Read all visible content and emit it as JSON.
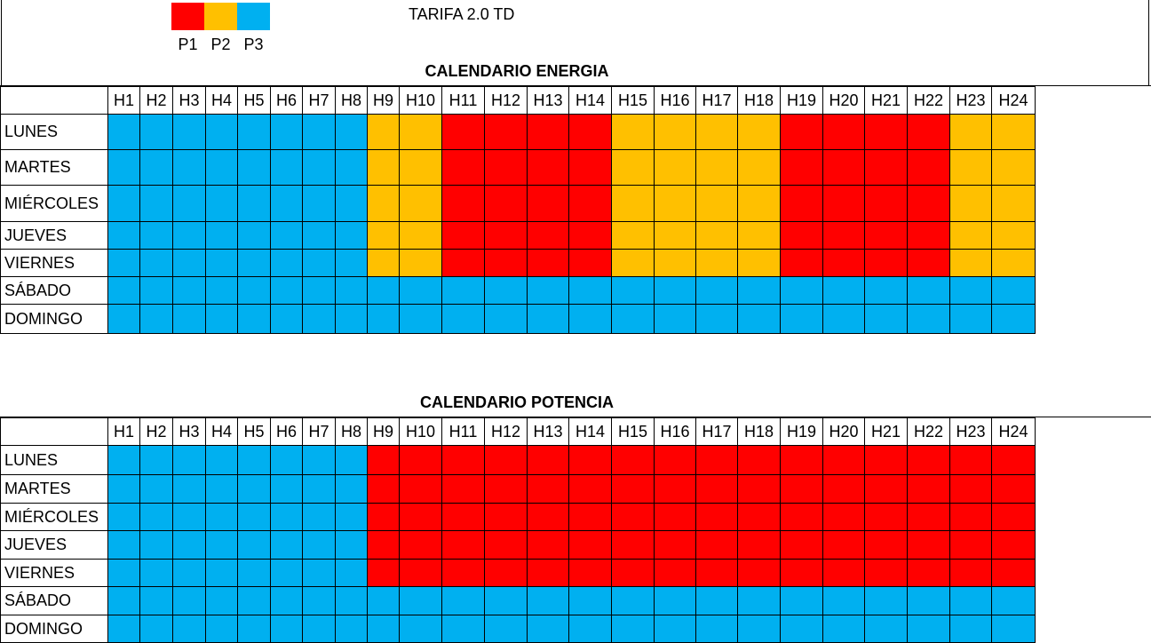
{
  "legend": [
    {
      "label": "P1",
      "color": "#ff0000"
    },
    {
      "label": "P2",
      "color": "#ffc000"
    },
    {
      "label": "P3",
      "color": "#00b0f0"
    }
  ],
  "header": {
    "title": "TARIFA 2.0 TD"
  },
  "calendars": [
    {
      "title": "CALENDARIO ENERGIA",
      "hours": [
        "H1",
        "H2",
        "H3",
        "H4",
        "H5",
        "H6",
        "H7",
        "H8",
        "H9",
        "H10",
        "H11",
        "H12",
        "H13",
        "H14",
        "H15",
        "H16",
        "H17",
        "H18",
        "H19",
        "H20",
        "H21",
        "H22",
        "H23",
        "H24"
      ],
      "rows": [
        {
          "day": "LUNES",
          "periods": [
            "P3",
            "P3",
            "P3",
            "P3",
            "P3",
            "P3",
            "P3",
            "P3",
            "P2",
            "P2",
            "P1",
            "P1",
            "P1",
            "P1",
            "P2",
            "P2",
            "P2",
            "P2",
            "P1",
            "P1",
            "P1",
            "P1",
            "P2",
            "P2"
          ]
        },
        {
          "day": "MARTES",
          "periods": [
            "P3",
            "P3",
            "P3",
            "P3",
            "P3",
            "P3",
            "P3",
            "P3",
            "P2",
            "P2",
            "P1",
            "P1",
            "P1",
            "P1",
            "P2",
            "P2",
            "P2",
            "P2",
            "P1",
            "P1",
            "P1",
            "P1",
            "P2",
            "P2"
          ]
        },
        {
          "day": "MIÉRCOLES",
          "periods": [
            "P3",
            "P3",
            "P3",
            "P3",
            "P3",
            "P3",
            "P3",
            "P3",
            "P2",
            "P2",
            "P1",
            "P1",
            "P1",
            "P1",
            "P2",
            "P2",
            "P2",
            "P2",
            "P1",
            "P1",
            "P1",
            "P1",
            "P2",
            "P2"
          ]
        },
        {
          "day": "JUEVES",
          "periods": [
            "P3",
            "P3",
            "P3",
            "P3",
            "P3",
            "P3",
            "P3",
            "P3",
            "P2",
            "P2",
            "P1",
            "P1",
            "P1",
            "P1",
            "P2",
            "P2",
            "P2",
            "P2",
            "P1",
            "P1",
            "P1",
            "P1",
            "P2",
            "P2"
          ]
        },
        {
          "day": "VIERNES",
          "periods": [
            "P3",
            "P3",
            "P3",
            "P3",
            "P3",
            "P3",
            "P3",
            "P3",
            "P2",
            "P2",
            "P1",
            "P1",
            "P1",
            "P1",
            "P2",
            "P2",
            "P2",
            "P2",
            "P1",
            "P1",
            "P1",
            "P1",
            "P2",
            "P2"
          ]
        },
        {
          "day": "SÁBADO",
          "periods": [
            "P3",
            "P3",
            "P3",
            "P3",
            "P3",
            "P3",
            "P3",
            "P3",
            "P3",
            "P3",
            "P3",
            "P3",
            "P3",
            "P3",
            "P3",
            "P3",
            "P3",
            "P3",
            "P3",
            "P3",
            "P3",
            "P3",
            "P3",
            "P3"
          ]
        },
        {
          "day": "DOMINGO",
          "periods": [
            "P3",
            "P3",
            "P3",
            "P3",
            "P3",
            "P3",
            "P3",
            "P3",
            "P3",
            "P3",
            "P3",
            "P3",
            "P3",
            "P3",
            "P3",
            "P3",
            "P3",
            "P3",
            "P3",
            "P3",
            "P3",
            "P3",
            "P3",
            "P3"
          ]
        }
      ]
    },
    {
      "title": "CALENDARIO POTENCIA",
      "hours": [
        "H1",
        "H2",
        "H3",
        "H4",
        "H5",
        "H6",
        "H7",
        "H8",
        "H9",
        "H10",
        "H11",
        "H12",
        "H13",
        "H14",
        "H15",
        "H16",
        "H17",
        "H18",
        "H19",
        "H20",
        "H21",
        "H22",
        "H23",
        "H24"
      ],
      "rows": [
        {
          "day": "LUNES",
          "periods": [
            "P3",
            "P3",
            "P3",
            "P3",
            "P3",
            "P3",
            "P3",
            "P3",
            "P1",
            "P1",
            "P1",
            "P1",
            "P1",
            "P1",
            "P1",
            "P1",
            "P1",
            "P1",
            "P1",
            "P1",
            "P1",
            "P1",
            "P1",
            "P1"
          ]
        },
        {
          "day": "MARTES",
          "periods": [
            "P3",
            "P3",
            "P3",
            "P3",
            "P3",
            "P3",
            "P3",
            "P3",
            "P1",
            "P1",
            "P1",
            "P1",
            "P1",
            "P1",
            "P1",
            "P1",
            "P1",
            "P1",
            "P1",
            "P1",
            "P1",
            "P1",
            "P1",
            "P1"
          ]
        },
        {
          "day": "MIÉRCOLES",
          "periods": [
            "P3",
            "P3",
            "P3",
            "P3",
            "P3",
            "P3",
            "P3",
            "P3",
            "P1",
            "P1",
            "P1",
            "P1",
            "P1",
            "P1",
            "P1",
            "P1",
            "P1",
            "P1",
            "P1",
            "P1",
            "P1",
            "P1",
            "P1",
            "P1"
          ]
        },
        {
          "day": "JUEVES",
          "periods": [
            "P3",
            "P3",
            "P3",
            "P3",
            "P3",
            "P3",
            "P3",
            "P3",
            "P1",
            "P1",
            "P1",
            "P1",
            "P1",
            "P1",
            "P1",
            "P1",
            "P1",
            "P1",
            "P1",
            "P1",
            "P1",
            "P1",
            "P1",
            "P1"
          ]
        },
        {
          "day": "VIERNES",
          "periods": [
            "P3",
            "P3",
            "P3",
            "P3",
            "P3",
            "P3",
            "P3",
            "P3",
            "P1",
            "P1",
            "P1",
            "P1",
            "P1",
            "P1",
            "P1",
            "P1",
            "P1",
            "P1",
            "P1",
            "P1",
            "P1",
            "P1",
            "P1",
            "P1"
          ]
        },
        {
          "day": "SÁBADO",
          "periods": [
            "P3",
            "P3",
            "P3",
            "P3",
            "P3",
            "P3",
            "P3",
            "P3",
            "P3",
            "P3",
            "P3",
            "P3",
            "P3",
            "P3",
            "P3",
            "P3",
            "P3",
            "P3",
            "P3",
            "P3",
            "P3",
            "P3",
            "P3",
            "P3"
          ]
        },
        {
          "day": "DOMINGO",
          "periods": [
            "P3",
            "P3",
            "P3",
            "P3",
            "P3",
            "P3",
            "P3",
            "P3",
            "P3",
            "P3",
            "P3",
            "P3",
            "P3",
            "P3",
            "P3",
            "P3",
            "P3",
            "P3",
            "P3",
            "P3",
            "P3",
            "P3",
            "P3",
            "P3"
          ]
        }
      ]
    }
  ]
}
